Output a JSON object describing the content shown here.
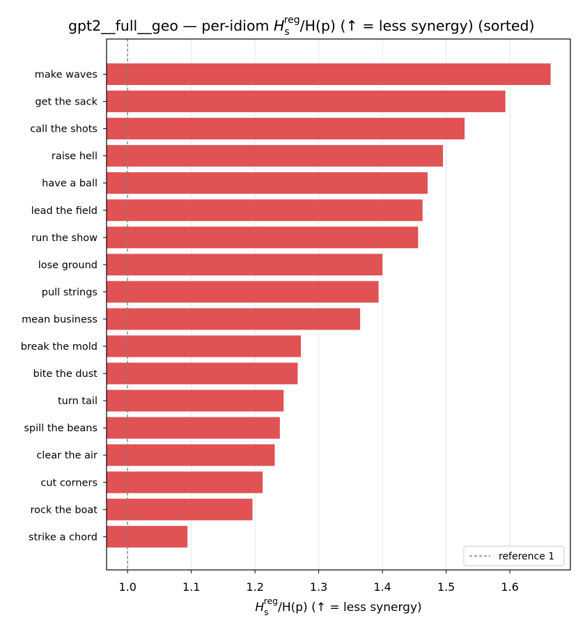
{
  "chart_data": {
    "type": "bar",
    "orientation": "horizontal",
    "title": {
      "prefix": "gpt2__full__geo — per-idiom ",
      "suffix": "  (↑ = less synergy) (sorted)"
    },
    "xlabel": {
      "suffix": "  (↑ = less synergy)"
    },
    "math": {
      "H": "H",
      "sub": "s",
      "sup": "reg",
      "denominator": "/H(p)"
    },
    "categories": [
      "make waves",
      "get the sack",
      "call the shots",
      "raise hell",
      "have a ball",
      "lead the field",
      "run the show",
      "lose ground",
      "pull strings",
      "mean business",
      "break the mold",
      "bite the dust",
      "turn tail",
      "spill the beans",
      "clear the air",
      "cut corners",
      "rock the boat",
      "strike a chord"
    ],
    "values": [
      1.664,
      1.593,
      1.529,
      1.495,
      1.471,
      1.463,
      1.456,
      1.4,
      1.394,
      1.365,
      1.272,
      1.267,
      1.245,
      1.239,
      1.231,
      1.212,
      1.196,
      1.094
    ],
    "xlim": [
      0.967,
      1.695
    ],
    "xticks": [
      "1.0",
      "1.1",
      "1.2",
      "1.3",
      "1.4",
      "1.5",
      "1.6"
    ],
    "reference_line": {
      "value": 1.0,
      "label": "reference 1",
      "style": "dashed"
    },
    "legend_position": "lower-right",
    "grid": {
      "x": true,
      "y": false
    },
    "bar_color": "#e05254",
    "reference_color": "#808080"
  }
}
